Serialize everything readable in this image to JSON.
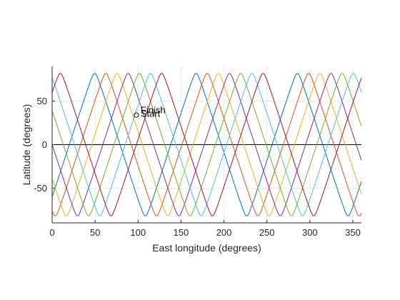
{
  "chart_data": {
    "type": "line",
    "title": "",
    "xlabel": "East longitude (degrees)",
    "ylabel": "Latitude (degrees)",
    "xlim": [
      0,
      360
    ],
    "ylim": [
      -90,
      90
    ],
    "xticks": [
      0,
      50,
      100,
      150,
      200,
      250,
      300,
      350
    ],
    "yticks": [
      -50,
      0,
      50
    ],
    "grid": true,
    "zero_line": true,
    "ground_track": {
      "inclination": 82,
      "lon_offset": 20,
      "period_lon": 118,
      "lon_shift_per_track": 13,
      "n_tracks": 7
    },
    "colors": [
      "#0072BD",
      "#D95319",
      "#EDB120",
      "#7E2F8E",
      "#77AC30",
      "#4DBEEE",
      "#A2142F"
    ],
    "annotations": [
      {
        "text": "Finish",
        "x": 103,
        "y": 36
      },
      {
        "text": "Start",
        "x": 103,
        "y": 32
      }
    ],
    "marker": {
      "x": 98,
      "y": 34
    }
  }
}
